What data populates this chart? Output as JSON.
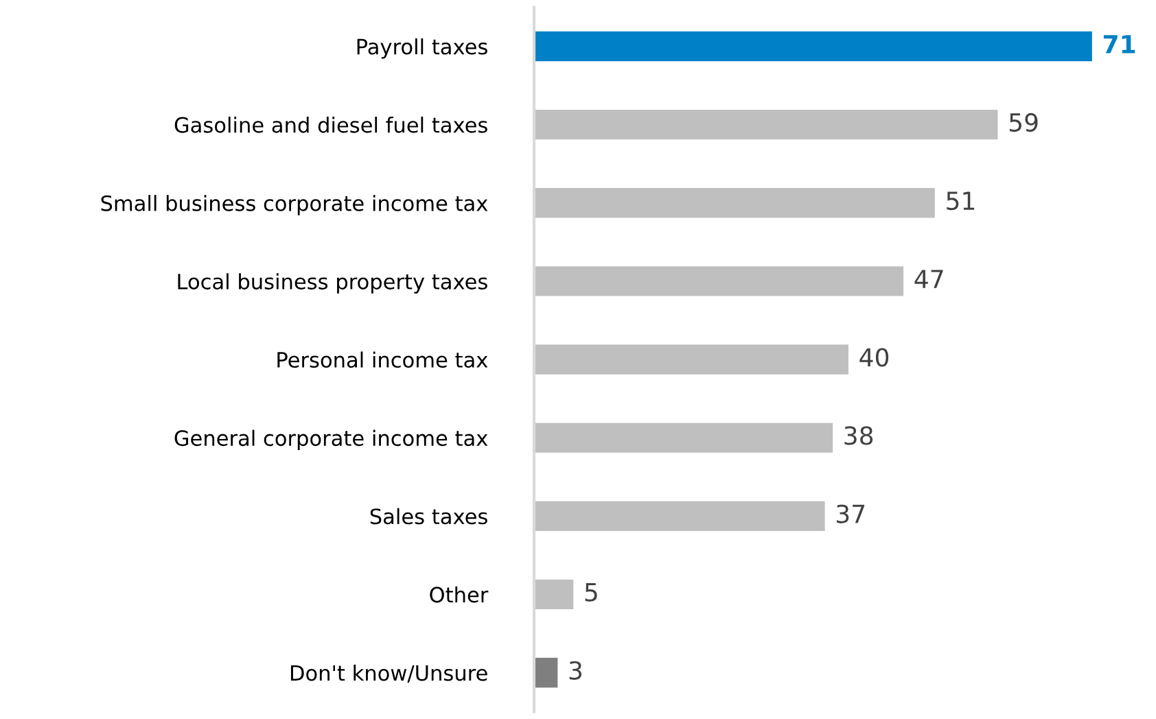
{
  "chart_data": {
    "type": "bar",
    "orientation": "horizontal",
    "data_labels": true,
    "categories": [
      "Payroll taxes",
      "Gasoline and diesel fuel taxes",
      "Small business corporate income tax",
      "Local business property taxes",
      "Personal income tax",
      "General corporate income tax",
      "Sales taxes",
      "Other",
      "Don't know/Unsure"
    ],
    "values": [
      71,
      59,
      51,
      47,
      40,
      38,
      37,
      5,
      3
    ],
    "colors": [
      "#0080c6",
      "#bfbfbf",
      "#bfbfbf",
      "#bfbfbf",
      "#bfbfbf",
      "#bfbfbf",
      "#bfbfbf",
      "#bfbfbf",
      "#7f7f7f"
    ],
    "grid": false
  }
}
